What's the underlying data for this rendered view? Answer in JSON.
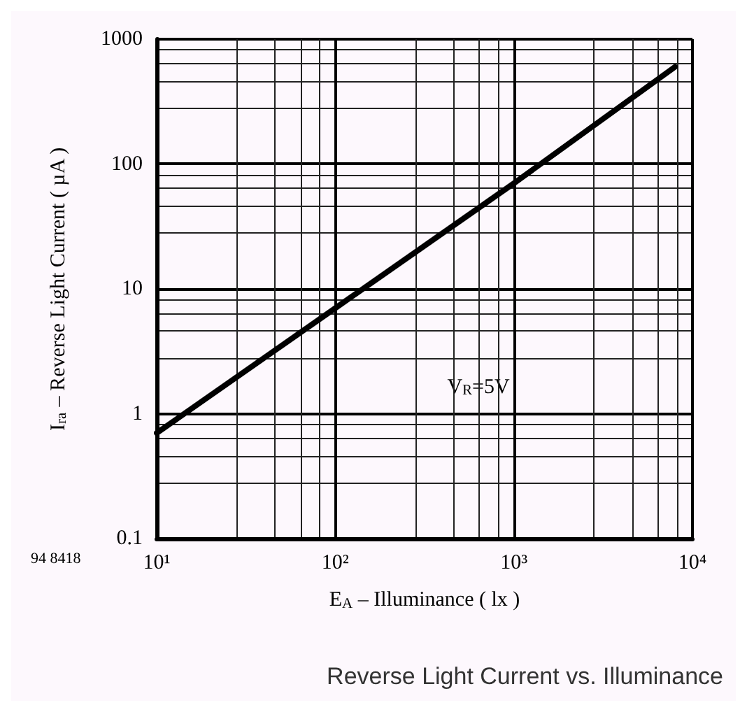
{
  "chart_data": {
    "type": "line",
    "title": "Reverse Light Current vs. Illuminance",
    "xlabel": "E$_{A}$ – Illuminance ( lx )",
    "ylabel": "I$_{ra}$ – Reverse Light Current ( µA )",
    "annotations": [
      "V$_{R}$=5V",
      "94 8418"
    ],
    "x": [
      10,
      100,
      1000,
      8000
    ],
    "series": [
      {
        "color": "#000000",
        "values": [
          0.7,
          7,
          70,
          600
        ]
      }
    ],
    "log": "xy",
    "xlim": [
      10,
      10000
    ],
    "ylim": [
      0.1,
      1000
    ],
    "xticks": [
      {
        "value": 10,
        "label": "10¹"
      },
      {
        "value": 100,
        "label": "10²"
      },
      {
        "value": 1000,
        "label": "10³"
      },
      {
        "value": 10000,
        "label": "10⁴"
      }
    ],
    "yticks": [
      0.1,
      1,
      10,
      100,
      1000
    ],
    "grid": true,
    "marker": "none",
    "line_style": "solid"
  }
}
